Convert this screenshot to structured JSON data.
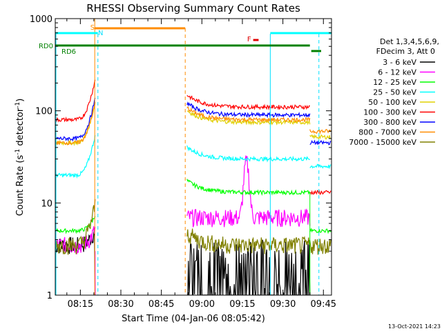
{
  "chart_data": {
    "type": "line",
    "title": "RHESSI Observing Summary Count Rates",
    "xlabel": "Start Time (04-Jan-06 08:05:42)",
    "ylabel_main": "Count Rate (s",
    "ylabel_sup1": "-1",
    "ylabel_mid": " detector",
    "ylabel_sup2": "-1",
    "ylabel_end": ")",
    "y_scale": "log",
    "ylim": [
      1,
      1000
    ],
    "x_range_minutes": [
      "08:05:42",
      "09:48:00"
    ],
    "x_ticks": [
      "08:15",
      "08:30",
      "08:45",
      "09:00",
      "09:15",
      "09:30",
      "09:45"
    ],
    "y_ticks": [
      "1",
      "10",
      "100",
      "1000"
    ],
    "grid": false,
    "legend_placement": "right",
    "legend_header": [
      "Det 1,3,4,5,6,9,",
      "FDecim 3, Att 0"
    ],
    "series": [
      {
        "name": "3 - 6 keV",
        "color": "#000000"
      },
      {
        "name": "6 - 12 keV",
        "color": "#ff00ff"
      },
      {
        "name": "12 - 25 keV",
        "color": "#00ff00"
      },
      {
        "name": "25 - 50 keV",
        "color": "#00ffff"
      },
      {
        "name": "50 - 100 keV",
        "color": "#e0d000"
      },
      {
        "name": "100 - 300 keV",
        "color": "#ff0000"
      },
      {
        "name": "300 - 800 keV",
        "color": "#0000ff"
      },
      {
        "name": "800 - 7000 keV",
        "color": "#ff8c00"
      },
      {
        "name": "7000 - 15000 keV",
        "color": "#808000"
      }
    ],
    "flags": [
      {
        "label": "S",
        "color": "#ff8c00"
      },
      {
        "label": "N",
        "color": "#00e0ff"
      },
      {
        "label": "F",
        "color": "#e00000"
      },
      {
        "label": "RD0",
        "color": "#008000"
      },
      {
        "label": "RD6",
        "color": "#008000"
      }
    ],
    "timestamp": "13-Oct-2021 14:23"
  }
}
